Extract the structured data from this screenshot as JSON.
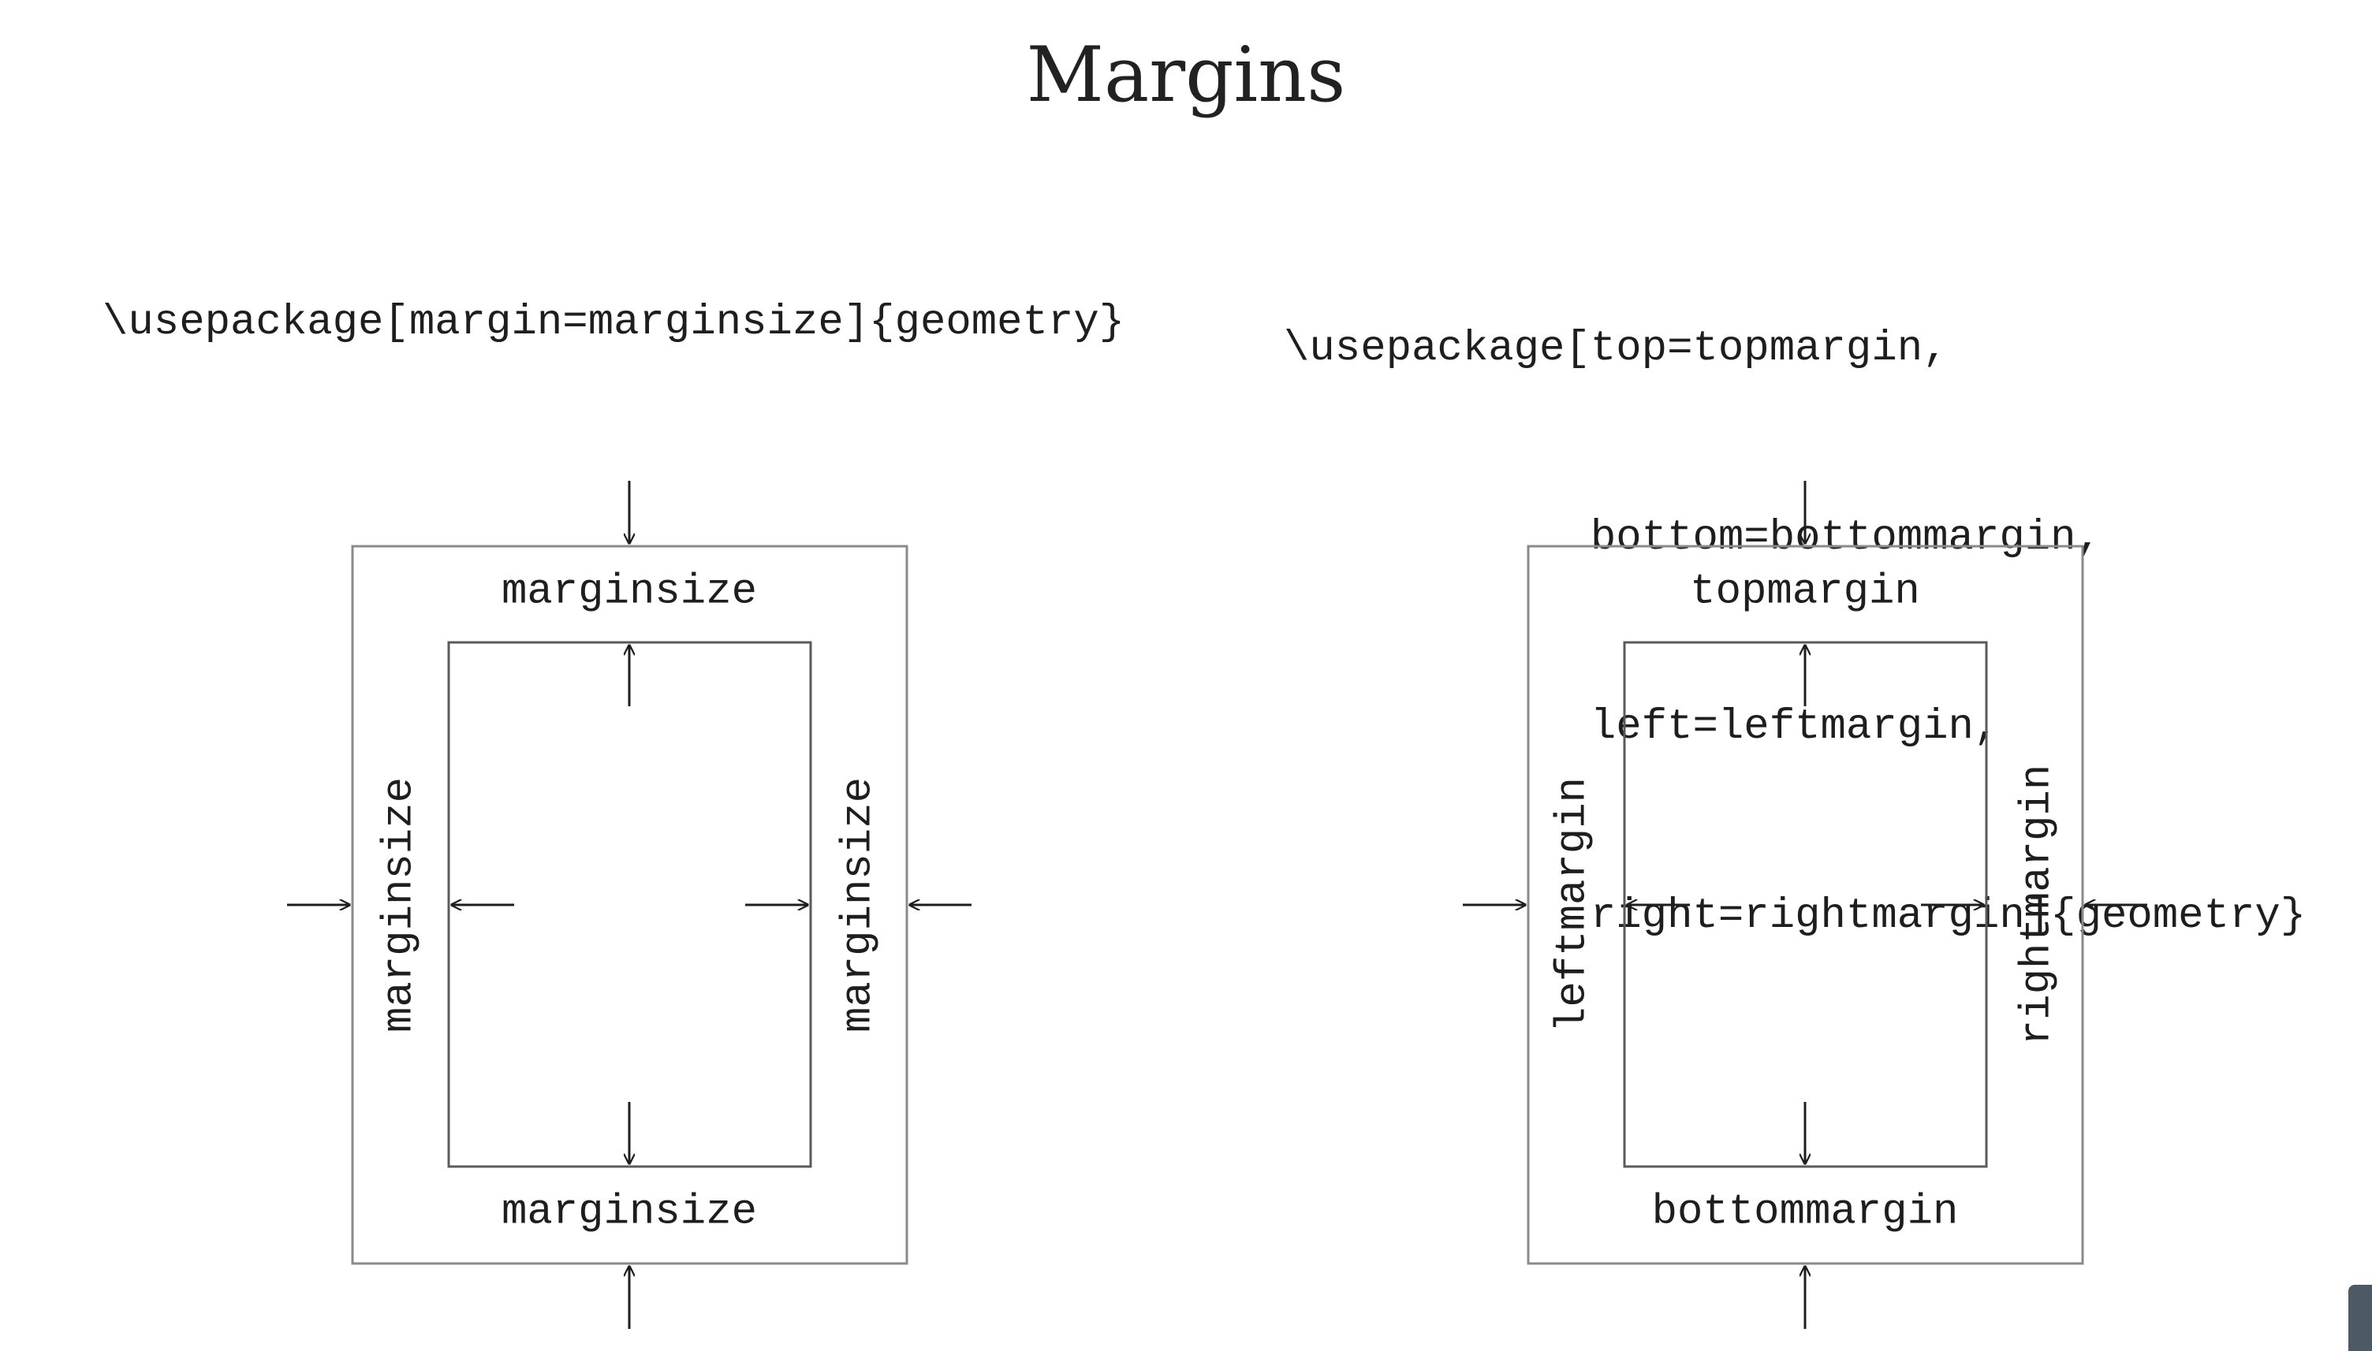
{
  "title": "Margins",
  "left_panel": {
    "code": "\\usepackage[margin=marginsize]{geometry}",
    "labels": {
      "top": "marginsize",
      "bottom": "marginsize",
      "left": "marginsize",
      "right": "marginsize"
    }
  },
  "right_panel": {
    "code_lines": [
      "\\usepackage[top=topmargin,",
      "            bottom=bottommargin,",
      "            left=leftmargin,",
      "            right=rightmargin]{geometry}"
    ],
    "labels": {
      "top": "topmargin",
      "bottom": "bottommargin",
      "left": "leftmargin",
      "right": "rightmargin"
    }
  },
  "colors": {
    "ink": "#1e1e1e",
    "page_border": "#8a8a8a",
    "text_border": "#5a5a5a",
    "background": "#ffffff"
  }
}
